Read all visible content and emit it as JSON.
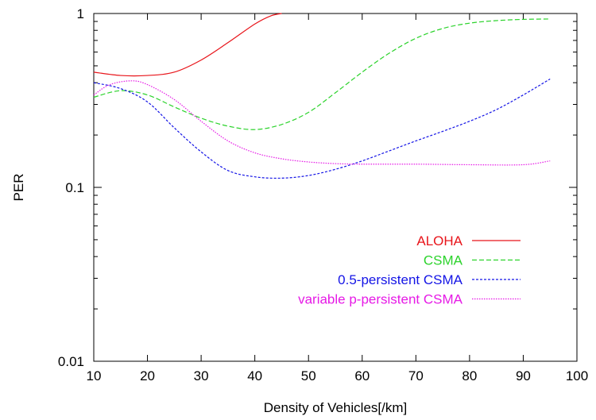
{
  "chart_data": {
    "type": "line",
    "xlabel": "Density of Vehicles[/km]",
    "ylabel": "PER",
    "xlim": [
      10,
      100
    ],
    "ylim": [
      0.01,
      1
    ],
    "yscale": "log",
    "grid": false,
    "legend_position": "right-middle",
    "x_ticks": [
      10,
      20,
      30,
      40,
      50,
      60,
      70,
      80,
      90,
      100
    ],
    "x_tick_labels": [
      "10",
      "20",
      "30",
      "40",
      "50",
      "60",
      "70",
      "80",
      "90",
      "100"
    ],
    "y_major_ticks": [
      0.01,
      0.1,
      1
    ],
    "y_tick_labels": [
      "0.01",
      "0.1",
      "1"
    ],
    "series": [
      {
        "name": "ALOHA",
        "color": "#e8141a",
        "dash": "solid",
        "x": [
          10,
          15,
          20,
          25,
          30,
          35,
          40,
          43,
          45
        ],
        "y": [
          0.46,
          0.44,
          0.44,
          0.46,
          0.54,
          0.68,
          0.87,
          0.97,
          1.0
        ]
      },
      {
        "name": "CSMA",
        "color": "#2cd32c",
        "dash": "dash",
        "x": [
          10,
          15,
          20,
          25,
          30,
          35,
          40,
          45,
          50,
          55,
          60,
          65,
          70,
          75,
          80,
          85,
          90,
          95
        ],
        "y": [
          0.33,
          0.36,
          0.34,
          0.29,
          0.25,
          0.225,
          0.215,
          0.23,
          0.27,
          0.35,
          0.46,
          0.59,
          0.72,
          0.82,
          0.88,
          0.91,
          0.925,
          0.93
        ]
      },
      {
        "name": "0.5-persistent CSMA",
        "color": "#1414e6",
        "dash": "short-dash",
        "x": [
          10,
          15,
          20,
          25,
          30,
          35,
          40,
          45,
          50,
          55,
          60,
          65,
          70,
          75,
          80,
          85,
          90,
          95
        ],
        "y": [
          0.4,
          0.37,
          0.31,
          0.22,
          0.16,
          0.125,
          0.115,
          0.113,
          0.117,
          0.127,
          0.142,
          0.162,
          0.185,
          0.21,
          0.24,
          0.28,
          0.34,
          0.42
        ]
      },
      {
        "name": "variable p-persistent CSMA",
        "color": "#e61ae6",
        "dash": "dot",
        "x": [
          10,
          13,
          17,
          20,
          25,
          30,
          35,
          40,
          45,
          50,
          55,
          60,
          70,
          80,
          90,
          95
        ],
        "y": [
          0.34,
          0.39,
          0.41,
          0.39,
          0.32,
          0.24,
          0.185,
          0.158,
          0.146,
          0.14,
          0.137,
          0.136,
          0.136,
          0.135,
          0.135,
          0.142
        ]
      }
    ]
  }
}
